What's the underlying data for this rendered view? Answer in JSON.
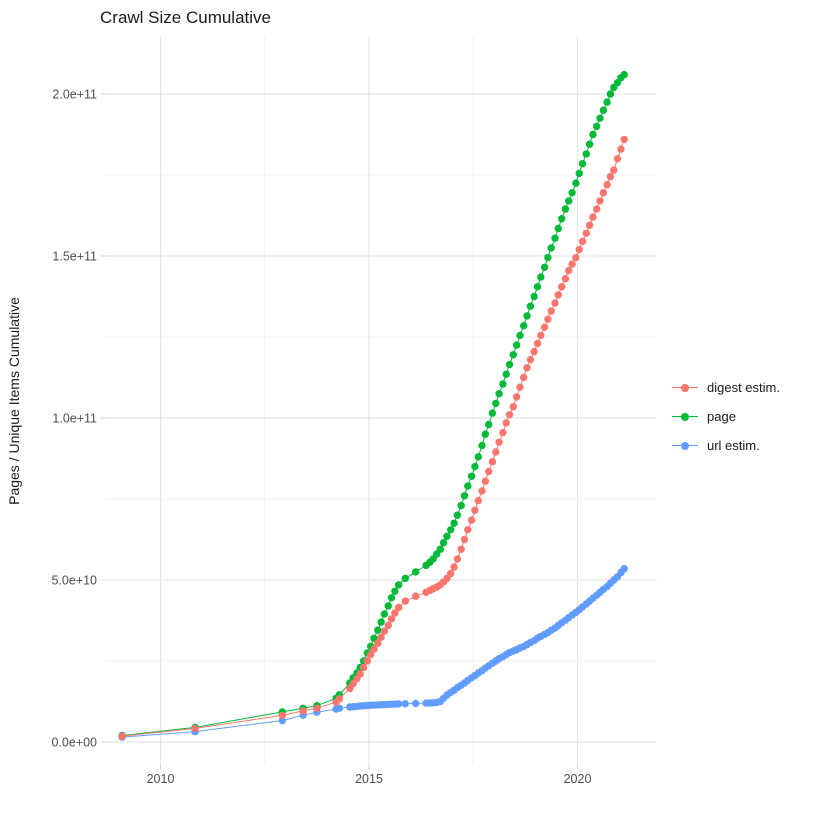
{
  "title": "Crawl Size Cumulative",
  "y_axis_title": "Pages / Unique Items Cumulative",
  "legend": {
    "position": "right",
    "items": [
      {
        "label": "digest estim.",
        "color": "#F8766D"
      },
      {
        "label": "page",
        "color": "#00BA38"
      },
      {
        "label": "url estim.",
        "color": "#619CFF"
      }
    ]
  },
  "colors": {
    "digest_estim": "#F8766D",
    "page": "#00BA38",
    "url_estim": "#619CFF",
    "grid_major": "#E5E5E5",
    "grid_minor": "#F2F2F2",
    "tick_text": "#4d4d4d",
    "background": "#ffffff"
  },
  "chart_data": {
    "type": "scatter",
    "title": "Crawl Size Cumulative",
    "xlabel": "",
    "ylabel": "Pages / Unique Items Cumulative",
    "x_unit": "year",
    "value_unit": "items (values below are in units of 1e9)",
    "xlim": [
      2008.7,
      2021.9
    ],
    "ylim": [
      0,
      217000000000
    ],
    "x_ticks": [
      {
        "value": 2010,
        "label": "2010"
      },
      {
        "value": 2015,
        "label": "2015"
      },
      {
        "value": 2020,
        "label": "2020"
      }
    ],
    "x_minor_ticks": [
      2012.5,
      2017.5
    ],
    "y_ticks": [
      {
        "value": 0,
        "label": "0.0e+00"
      },
      {
        "value": 50000000000,
        "label": "5.0e+10"
      },
      {
        "value": 100000000000,
        "label": "1.0e+11"
      },
      {
        "value": 150000000000,
        "label": "1.5e+11"
      },
      {
        "value": 200000000000,
        "label": "2.0e+11"
      }
    ],
    "y_minor_ticks": [
      25000000000,
      75000000000,
      125000000000,
      175000000000
    ],
    "grid": true,
    "legend_position": "right",
    "series": [
      {
        "name": "digest estim.",
        "color": "#F8766D",
        "points_year_billions": [
          [
            2009.08,
            1.8
          ],
          [
            2010.83,
            4.2
          ],
          [
            2012.92,
            8.2
          ],
          [
            2013.42,
            9.6
          ],
          [
            2013.75,
            10.4
          ],
          [
            2014.21,
            12.3
          ],
          [
            2014.29,
            13.3
          ],
          [
            2014.54,
            16.5
          ],
          [
            2014.62,
            18
          ],
          [
            2014.71,
            19.5
          ],
          [
            2014.79,
            21
          ],
          [
            2014.87,
            23
          ],
          [
            2014.96,
            25
          ],
          [
            2015.04,
            27
          ],
          [
            2015.12,
            28.7
          ],
          [
            2015.21,
            30.5
          ],
          [
            2015.29,
            32.3
          ],
          [
            2015.37,
            34.2
          ],
          [
            2015.46,
            36
          ],
          [
            2015.54,
            38
          ],
          [
            2015.62,
            39.8
          ],
          [
            2015.71,
            41.5
          ],
          [
            2015.87,
            43.5
          ],
          [
            2016.12,
            45
          ],
          [
            2016.37,
            46.2
          ],
          [
            2016.46,
            46.8
          ],
          [
            2016.54,
            47.3
          ],
          [
            2016.62,
            47.8
          ],
          [
            2016.71,
            48.5
          ],
          [
            2016.79,
            49.4
          ],
          [
            2016.87,
            50.5
          ],
          [
            2016.96,
            52
          ],
          [
            2017.04,
            54
          ],
          [
            2017.12,
            56.5
          ],
          [
            2017.21,
            59.5
          ],
          [
            2017.29,
            62.5
          ],
          [
            2017.37,
            65.5
          ],
          [
            2017.46,
            68.5
          ],
          [
            2017.54,
            71.5
          ],
          [
            2017.62,
            74.5
          ],
          [
            2017.71,
            77.5
          ],
          [
            2017.79,
            80.5
          ],
          [
            2017.87,
            83.5
          ],
          [
            2017.96,
            86.5
          ],
          [
            2018.04,
            89.5
          ],
          [
            2018.12,
            92.5
          ],
          [
            2018.21,
            95.5
          ],
          [
            2018.29,
            98.5
          ],
          [
            2018.37,
            101
          ],
          [
            2018.46,
            103.5
          ],
          [
            2018.54,
            106.5
          ],
          [
            2018.62,
            109.5
          ],
          [
            2018.71,
            112.5
          ],
          [
            2018.79,
            115.5
          ],
          [
            2018.87,
            118
          ],
          [
            2018.96,
            120.5
          ],
          [
            2019.04,
            123
          ],
          [
            2019.12,
            125.5
          ],
          [
            2019.21,
            128
          ],
          [
            2019.29,
            130.5
          ],
          [
            2019.37,
            133
          ],
          [
            2019.46,
            135.5
          ],
          [
            2019.54,
            138
          ],
          [
            2019.62,
            140.5
          ],
          [
            2019.71,
            143
          ],
          [
            2019.79,
            145.5
          ],
          [
            2019.87,
            147.5
          ],
          [
            2019.96,
            149.5
          ],
          [
            2020.04,
            152
          ],
          [
            2020.12,
            154.5
          ],
          [
            2020.21,
            157
          ],
          [
            2020.29,
            159.5
          ],
          [
            2020.37,
            162
          ],
          [
            2020.46,
            164.5
          ],
          [
            2020.54,
            167
          ],
          [
            2020.62,
            169.5
          ],
          [
            2020.71,
            172
          ],
          [
            2020.79,
            174.5
          ],
          [
            2020.87,
            176.5
          ],
          [
            2020.96,
            180
          ],
          [
            2021.04,
            183
          ],
          [
            2021.12,
            186
          ]
        ]
      },
      {
        "name": "page",
        "color": "#00BA38",
        "points_year_billions": [
          [
            2009.08,
            2
          ],
          [
            2010.83,
            4.5
          ],
          [
            2012.92,
            9.3
          ],
          [
            2013.42,
            10.4
          ],
          [
            2013.75,
            11.2
          ],
          [
            2014.21,
            13.5
          ],
          [
            2014.29,
            14.6
          ],
          [
            2014.54,
            18.2
          ],
          [
            2014.62,
            19.8
          ],
          [
            2014.71,
            21.3
          ],
          [
            2014.79,
            23
          ],
          [
            2014.87,
            25
          ],
          [
            2014.96,
            27.5
          ],
          [
            2015.04,
            29.5
          ],
          [
            2015.12,
            32
          ],
          [
            2015.21,
            34.5
          ],
          [
            2015.29,
            37
          ],
          [
            2015.37,
            39.5
          ],
          [
            2015.46,
            42
          ],
          [
            2015.54,
            44.5
          ],
          [
            2015.62,
            46.5
          ],
          [
            2015.71,
            48.5
          ],
          [
            2015.87,
            50.5
          ],
          [
            2016.12,
            52.5
          ],
          [
            2016.37,
            54.5
          ],
          [
            2016.46,
            55.5
          ],
          [
            2016.54,
            56.5
          ],
          [
            2016.62,
            58
          ],
          [
            2016.71,
            59.5
          ],
          [
            2016.79,
            61.5
          ],
          [
            2016.87,
            63.5
          ],
          [
            2016.96,
            65.5
          ],
          [
            2017.04,
            67.5
          ],
          [
            2017.12,
            70
          ],
          [
            2017.21,
            73
          ],
          [
            2017.29,
            76
          ],
          [
            2017.37,
            79
          ],
          [
            2017.46,
            82
          ],
          [
            2017.54,
            85
          ],
          [
            2017.62,
            88
          ],
          [
            2017.71,
            91.5
          ],
          [
            2017.79,
            95
          ],
          [
            2017.87,
            98
          ],
          [
            2017.96,
            101.5
          ],
          [
            2018.04,
            104.5
          ],
          [
            2018.12,
            107.5
          ],
          [
            2018.21,
            110.5
          ],
          [
            2018.29,
            113.5
          ],
          [
            2018.37,
            116.5
          ],
          [
            2018.46,
            119.5
          ],
          [
            2018.54,
            122.5
          ],
          [
            2018.62,
            125.5
          ],
          [
            2018.71,
            128.5
          ],
          [
            2018.79,
            131.5
          ],
          [
            2018.87,
            134.5
          ],
          [
            2018.96,
            137.5
          ],
          [
            2019.04,
            140.5
          ],
          [
            2019.12,
            143.5
          ],
          [
            2019.21,
            146.5
          ],
          [
            2019.29,
            149.5
          ],
          [
            2019.37,
            152.5
          ],
          [
            2019.46,
            155.5
          ],
          [
            2019.54,
            158.5
          ],
          [
            2019.62,
            161.5
          ],
          [
            2019.71,
            164.5
          ],
          [
            2019.79,
            167
          ],
          [
            2019.87,
            169.5
          ],
          [
            2019.96,
            172.5
          ],
          [
            2020.04,
            175.5
          ],
          [
            2020.12,
            178.5
          ],
          [
            2020.21,
            181.5
          ],
          [
            2020.29,
            184.5
          ],
          [
            2020.37,
            187.5
          ],
          [
            2020.46,
            190
          ],
          [
            2020.54,
            192.5
          ],
          [
            2020.62,
            195
          ],
          [
            2020.71,
            197.5
          ],
          [
            2020.79,
            200
          ],
          [
            2020.87,
            202
          ],
          [
            2020.96,
            203.5
          ],
          [
            2021.04,
            205
          ],
          [
            2021.12,
            206
          ]
        ]
      },
      {
        "name": "url estim.",
        "color": "#619CFF",
        "points_year_billions": [
          [
            2009.08,
            1.5
          ],
          [
            2010.83,
            3.2
          ],
          [
            2012.92,
            6.6
          ],
          [
            2013.42,
            8.3
          ],
          [
            2013.75,
            9.2
          ],
          [
            2014.21,
            10.2
          ],
          [
            2014.29,
            10.4
          ],
          [
            2014.54,
            10.8
          ],
          [
            2014.62,
            10.9
          ],
          [
            2014.71,
            11
          ],
          [
            2014.79,
            11.1
          ],
          [
            2014.87,
            11.2
          ],
          [
            2014.96,
            11.3
          ],
          [
            2015.04,
            11.35
          ],
          [
            2015.12,
            11.4
          ],
          [
            2015.21,
            11.45
          ],
          [
            2015.29,
            11.5
          ],
          [
            2015.37,
            11.55
          ],
          [
            2015.46,
            11.6
          ],
          [
            2015.54,
            11.65
          ],
          [
            2015.62,
            11.7
          ],
          [
            2015.71,
            11.75
          ],
          [
            2015.87,
            11.8
          ],
          [
            2016.12,
            11.9
          ],
          [
            2016.37,
            12
          ],
          [
            2016.46,
            12.05
          ],
          [
            2016.54,
            12.1
          ],
          [
            2016.62,
            12.2
          ],
          [
            2016.71,
            12.5
          ],
          [
            2016.79,
            13.5
          ],
          [
            2016.87,
            14.5
          ],
          [
            2016.96,
            15.3
          ],
          [
            2017.04,
            16
          ],
          [
            2017.12,
            16.8
          ],
          [
            2017.21,
            17.5
          ],
          [
            2017.29,
            18.2
          ],
          [
            2017.37,
            19
          ],
          [
            2017.46,
            19.8
          ],
          [
            2017.54,
            20.5
          ],
          [
            2017.62,
            21.3
          ],
          [
            2017.71,
            22
          ],
          [
            2017.79,
            22.8
          ],
          [
            2017.87,
            23.5
          ],
          [
            2017.96,
            24.3
          ],
          [
            2018.04,
            25
          ],
          [
            2018.12,
            25.7
          ],
          [
            2018.21,
            26.3
          ],
          [
            2018.29,
            27
          ],
          [
            2018.37,
            27.6
          ],
          [
            2018.46,
            28.1
          ],
          [
            2018.54,
            28.5
          ],
          [
            2018.62,
            29
          ],
          [
            2018.71,
            29.5
          ],
          [
            2018.79,
            30.1
          ],
          [
            2018.87,
            30.7
          ],
          [
            2018.96,
            31.3
          ],
          [
            2019.04,
            32
          ],
          [
            2019.12,
            32.6
          ],
          [
            2019.21,
            33.2
          ],
          [
            2019.29,
            33.8
          ],
          [
            2019.37,
            34.5
          ],
          [
            2019.46,
            35.2
          ],
          [
            2019.54,
            36
          ],
          [
            2019.62,
            36.8
          ],
          [
            2019.71,
            37.6
          ],
          [
            2019.79,
            38.4
          ],
          [
            2019.87,
            39.2
          ],
          [
            2019.96,
            40
          ],
          [
            2020.04,
            40.8
          ],
          [
            2020.12,
            41.7
          ],
          [
            2020.21,
            42.6
          ],
          [
            2020.29,
            43.5
          ],
          [
            2020.37,
            44.4
          ],
          [
            2020.46,
            45.3
          ],
          [
            2020.54,
            46.2
          ],
          [
            2020.62,
            47.1
          ],
          [
            2020.71,
            48
          ],
          [
            2020.79,
            49
          ],
          [
            2020.87,
            50
          ],
          [
            2020.96,
            51
          ],
          [
            2021.04,
            52.3
          ],
          [
            2021.12,
            53.5
          ]
        ]
      }
    ]
  }
}
